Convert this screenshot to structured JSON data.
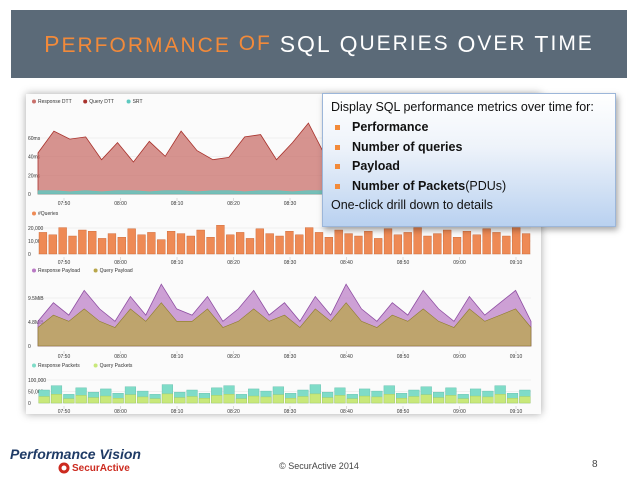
{
  "slide": {
    "title_p1_big": "P",
    "title_p1_rest": "ERFORMANCE",
    "title_of": "OF",
    "title_sql": "SQL",
    "title_q_big": "Q",
    "title_q_rest": "UERIES",
    "title_o_big": "O",
    "title_o_rest": "VER",
    "title_t_big": "T",
    "title_t_rest": "IME",
    "copyright": "© SecurActive 2014",
    "page_number": "8",
    "brand_name": "Performance Vision",
    "brand_sub": "SecurActive"
  },
  "callout": {
    "intro": "Display SQL performance metrics over time for:",
    "items": [
      {
        "bold": "Performance",
        "rest": ""
      },
      {
        "bold": "Number of queries",
        "rest": ""
      },
      {
        "bold": "Payload",
        "rest": ""
      },
      {
        "bold": "Number of Packets",
        "rest": " (PDUs)"
      }
    ],
    "foot": "One-click drill down to details"
  },
  "colors": {
    "title_bg": "#5b6a78",
    "accent": "#f28a3a",
    "response_dtt": "#c9706b",
    "query_dtt": "#a8322c",
    "srt": "#5ec9c0",
    "queries": "#ee8a55",
    "response_payload": "#b979c4",
    "query_payload": "#b8a64a",
    "response_packets": "#7fdcc8",
    "query_packets": "#c8e87a"
  },
  "time_ticks": [
    "07:50",
    "08:00",
    "08:10",
    "08:20",
    "08:30",
    "08:40",
    "08:50",
    "09:00",
    "09:10"
  ],
  "chart_data": [
    {
      "type": "area",
      "legend": [
        "Response DTT",
        "Query DTT",
        "SRT"
      ],
      "y_ticks": [
        "60ms",
        "40ms",
        "20ms",
        "0"
      ],
      "ylim": [
        0,
        70
      ],
      "series": [
        {
          "name": "Response DTT",
          "values": [
            36,
            55,
            48,
            50,
            30,
            45,
            28,
            46,
            33,
            55,
            38,
            30,
            32,
            50,
            52,
            30,
            45,
            62,
            35,
            44,
            28,
            50,
            42,
            56,
            30,
            48,
            25,
            40,
            52,
            45,
            60,
            48
          ]
        },
        {
          "name": "SRT",
          "values": [
            3,
            3,
            2,
            3,
            2,
            3,
            3,
            2,
            3,
            3,
            2,
            3,
            3,
            2,
            3,
            3,
            2,
            3,
            3,
            2,
            3,
            3,
            2,
            3,
            3,
            2,
            3,
            3,
            2,
            3,
            3,
            2
          ]
        }
      ]
    },
    {
      "type": "bar",
      "legend": [
        "#Queries"
      ],
      "y_ticks": [
        "20,000",
        "10,000",
        "0"
      ],
      "ylim": [
        0,
        25000
      ],
      "values": [
        18000,
        16000,
        22000,
        15000,
        20000,
        19000,
        13000,
        17000,
        14000,
        21000,
        16000,
        18000,
        12000,
        19000,
        17000,
        15000,
        20000,
        14000,
        24000,
        16000,
        18000,
        13000,
        21000,
        17000,
        15000,
        19000,
        16000,
        22000,
        18000,
        14000,
        20000,
        17000,
        15000,
        19000,
        13000,
        21000,
        16000,
        18000,
        22000,
        15000,
        17000,
        20000,
        14000,
        19000,
        16000,
        21000,
        18000,
        15000,
        22000,
        17000
      ]
    },
    {
      "type": "area",
      "legend": [
        "Response Payload",
        "Query Payload"
      ],
      "y_ticks": [
        "9.5MiB",
        "4.8MiB",
        "0"
      ],
      "ylim": [
        0,
        11
      ],
      "series": [
        {
          "name": "Response Payload",
          "values": [
            4,
            7,
            5,
            9,
            6,
            4,
            8,
            5,
            10,
            6,
            5,
            8,
            4,
            6,
            9,
            5,
            7,
            4,
            8,
            5,
            10,
            6,
            4,
            7,
            5,
            9,
            6,
            4,
            8,
            5,
            7,
            9,
            4
          ]
        },
        {
          "name": "Query Payload",
          "values": [
            3,
            5,
            4,
            6,
            4,
            3,
            6,
            4,
            7,
            4,
            4,
            6,
            3,
            4,
            6,
            4,
            5,
            3,
            6,
            4,
            7,
            4,
            3,
            5,
            4,
            6,
            4,
            3,
            6,
            4,
            5,
            6,
            3
          ]
        }
      ]
    },
    {
      "type": "bar",
      "legend": [
        "Response Packets",
        "Query Packets"
      ],
      "y_ticks": [
        "100,000",
        "50,000",
        "0"
      ],
      "ylim": [
        0,
        120000
      ],
      "series": [
        {
          "name": "Response Packets",
          "values": [
            60000,
            80000,
            40000,
            70000,
            50000,
            65000,
            45000,
            75000,
            55000,
            40000,
            85000,
            50000,
            60000,
            45000,
            70000,
            80000,
            40000,
            65000,
            55000,
            75000,
            45000,
            60000,
            85000,
            50000,
            70000,
            40000,
            65000,
            55000,
            80000,
            45000,
            60000,
            75000,
            50000,
            70000,
            40000,
            65000,
            55000,
            80000,
            45000,
            60000
          ]
        },
        {
          "name": "Query Packets",
          "values": [
            30000,
            40000,
            20000,
            35000,
            25000,
            32000,
            22000,
            38000,
            28000,
            20000,
            42000,
            25000,
            30000,
            22000,
            35000,
            40000,
            20000,
            32000,
            28000,
            38000,
            22000,
            30000,
            42000,
            25000,
            35000,
            20000,
            32000,
            28000,
            40000,
            22000,
            30000,
            38000,
            25000,
            35000,
            20000,
            32000,
            28000,
            40000,
            22000,
            30000
          ]
        }
      ]
    }
  ]
}
